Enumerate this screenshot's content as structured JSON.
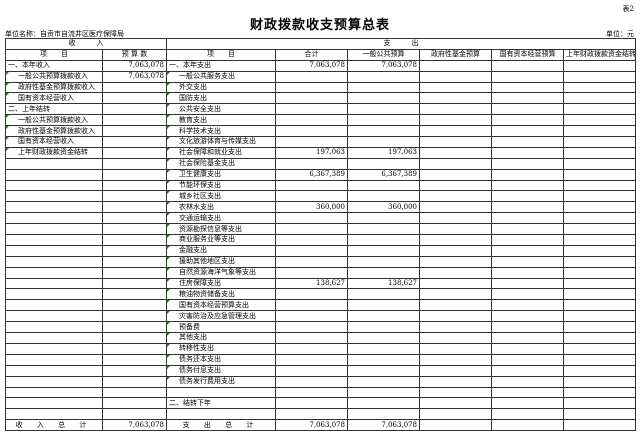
{
  "table_no": "表2",
  "title": "财政拨款收支预算总表",
  "unit_name": "单位名称：自贡市自流井区医疗保障局",
  "unit": "单位：元",
  "headers": {
    "income": "收　　　入",
    "expense": "支　　　出",
    "income_item": "项　　目",
    "income_amount": "预 算 数",
    "expense_item": "项　　目",
    "total": "合计",
    "general": "一般公共预算",
    "gov_fund": "政府性基金预算",
    "state_capital": "国有资本经营预算",
    "carryover": "上年财政拨款资金结转"
  },
  "income_rows": [
    {
      "item": "一、本年收入",
      "amount": "7,063,078",
      "indent": false
    },
    {
      "item": "一般公共预算拨款收入",
      "amount": "7,063,078",
      "indent": true
    },
    {
      "item": "政府性基金预算拨款收入",
      "amount": "",
      "indent": true
    },
    {
      "item": "国有资本经营收入",
      "amount": "",
      "indent": true
    },
    {
      "item": "二、上年结转",
      "amount": "",
      "indent": false
    },
    {
      "item": "一般公共预算拨款收入",
      "amount": "",
      "indent": true
    },
    {
      "item": "政府性基金预算拨款收入",
      "amount": "",
      "indent": true
    },
    {
      "item": "国有资本经营收入",
      "amount": "",
      "indent": true
    },
    {
      "item": "上年财政拨款资金结转",
      "amount": "",
      "indent": true
    }
  ],
  "expense_rows": [
    {
      "item": "一、本年支出",
      "total": "7,063,078",
      "general": "7,063,078",
      "indent": false
    },
    {
      "item": "一般公共服务支出",
      "total": "",
      "general": "",
      "indent": true
    },
    {
      "item": "外交支出",
      "total": "",
      "general": "",
      "indent": true
    },
    {
      "item": "国防支出",
      "total": "",
      "general": "",
      "indent": true
    },
    {
      "item": "公共安全支出",
      "total": "",
      "general": "",
      "indent": true
    },
    {
      "item": "教育支出",
      "total": "",
      "general": "",
      "indent": true
    },
    {
      "item": "科学技术支出",
      "total": "",
      "general": "",
      "indent": true
    },
    {
      "item": "文化旅游体育与传媒支出",
      "total": "",
      "general": "",
      "indent": true
    },
    {
      "item": "社会保障和就业支出",
      "total": "197,063",
      "general": "197,063",
      "indent": true
    },
    {
      "item": "社会保险基金支出",
      "total": "",
      "general": "",
      "indent": true
    },
    {
      "item": "卫生健康支出",
      "total": "6,367,389",
      "general": "6,367,389",
      "indent": true
    },
    {
      "item": "节能环保支出",
      "total": "",
      "general": "",
      "indent": true
    },
    {
      "item": "城乡社区支出",
      "total": "",
      "general": "",
      "indent": true
    },
    {
      "item": "农林水支出",
      "total": "360,000",
      "general": "360,000",
      "indent": true
    },
    {
      "item": "交通运输支出",
      "total": "",
      "general": "",
      "indent": true
    },
    {
      "item": "资源勘探信息等支出",
      "total": "",
      "general": "",
      "indent": true
    },
    {
      "item": "商业服务业等支出",
      "total": "",
      "general": "",
      "indent": true
    },
    {
      "item": "金融支出",
      "total": "",
      "general": "",
      "indent": true
    },
    {
      "item": "援助其他地区支出",
      "total": "",
      "general": "",
      "indent": true
    },
    {
      "item": "自然资源海洋气象等支出",
      "total": "",
      "general": "",
      "indent": true
    },
    {
      "item": "住房保障支出",
      "total": "138,627",
      "general": "138,627",
      "indent": true
    },
    {
      "item": "粮油物资储备支出",
      "total": "",
      "general": "",
      "indent": true
    },
    {
      "item": "国有资本经营预算支出",
      "total": "",
      "general": "",
      "indent": true
    },
    {
      "item": "灾害防治及应急管理支出",
      "total": "",
      "general": "",
      "indent": true
    },
    {
      "item": "预备费",
      "total": "",
      "general": "",
      "indent": true
    },
    {
      "item": "其他支出",
      "total": "",
      "general": "",
      "indent": true
    },
    {
      "item": "转移性支出",
      "total": "",
      "general": "",
      "indent": true
    },
    {
      "item": "债务还本支出",
      "total": "",
      "general": "",
      "indent": true
    },
    {
      "item": "债务付息支出",
      "total": "",
      "general": "",
      "indent": true
    },
    {
      "item": "债务发行费用支出",
      "total": "",
      "general": "",
      "indent": true
    },
    {
      "item": "",
      "total": "",
      "general": "",
      "indent": false
    },
    {
      "item": "二、结转下年",
      "total": "",
      "general": "",
      "indent": false
    },
    {
      "item": "",
      "total": "",
      "general": "",
      "indent": false
    }
  ],
  "totals": {
    "income_label": "收 入 总 计",
    "income_amount": "7,063,078",
    "expense_label": "支 出 总 计",
    "expense_total": "7,063,078",
    "expense_general": "7,063,078"
  }
}
